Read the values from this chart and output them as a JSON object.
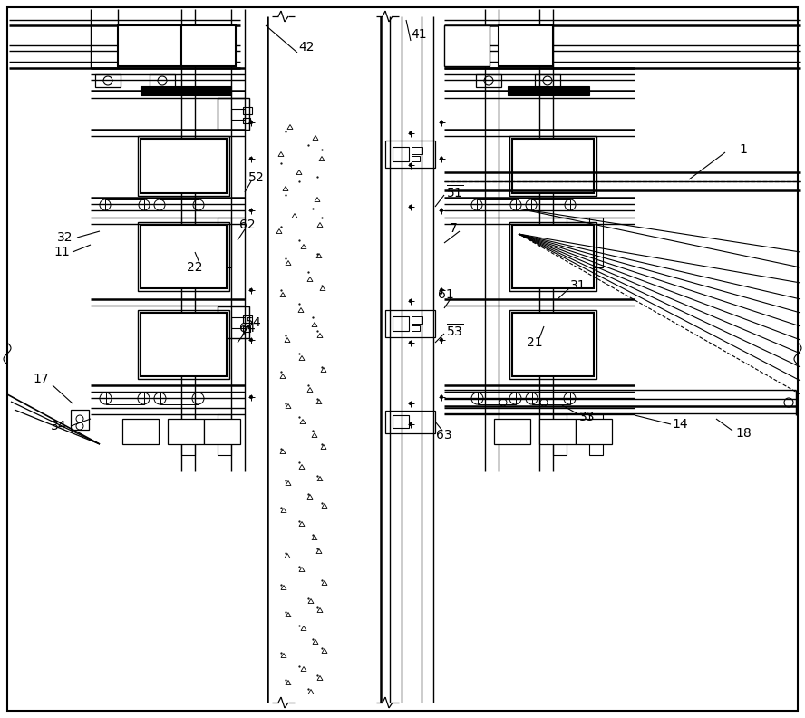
{
  "fig_width": 8.88,
  "fig_height": 7.92,
  "dpi": 100,
  "bg_color": "#ffffff"
}
